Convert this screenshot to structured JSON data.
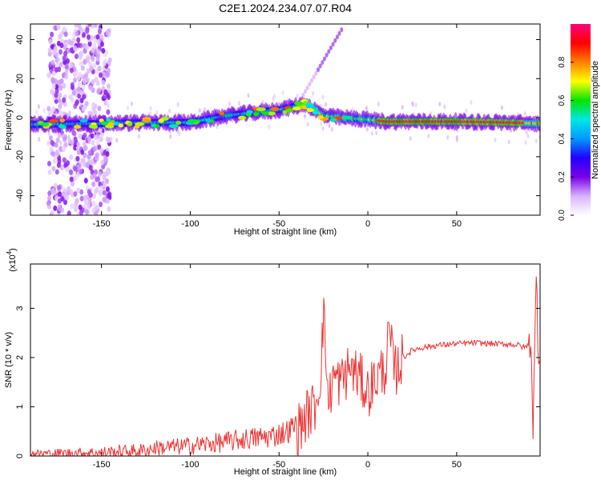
{
  "title": "C2E1.2024.234.07.07.R04",
  "chart_data": [
    {
      "type": "heatmap",
      "xlabel": "Height of straight line (km)",
      "ylabel": "Frequency (Hz)",
      "xlim": [
        -190,
        97
      ],
      "ylim": [
        -50,
        48
      ],
      "x_ticks": [
        -150,
        -100,
        -50,
        0,
        50
      ],
      "y_ticks": [
        40,
        20,
        0,
        -20,
        -40
      ],
      "colorbar": {
        "label": "Normalized spectral amplitude",
        "range": [
          0,
          1
        ],
        "ticks": [
          "0.0",
          "0.2",
          "0.4",
          "0.6",
          "0.8"
        ],
        "colors": [
          "#ffffff",
          "#d9b3ff",
          "#7a00e6",
          "#2200ff",
          "#0099ff",
          "#00e6e6",
          "#00e600",
          "#ffff00",
          "#ff8000",
          "#ff0000",
          "#ff0080"
        ]
      },
      "ridge": {
        "description": "main echo frequency track vs height",
        "points": [
          {
            "x": -190,
            "y": -3.5
          },
          {
            "x": -150,
            "y": -3
          },
          {
            "x": -120,
            "y": -2.5
          },
          {
            "x": -100,
            "y": -2.5
          },
          {
            "x": -80,
            "y": 1
          },
          {
            "x": -60,
            "y": 3
          },
          {
            "x": -50,
            "y": 4
          },
          {
            "x": -35,
            "y": 7
          },
          {
            "x": -25,
            "y": 1
          },
          {
            "x": -15,
            "y": 0
          },
          {
            "x": 0,
            "y": -1
          },
          {
            "x": 10,
            "y": -2
          },
          {
            "x": 50,
            "y": -2
          },
          {
            "x": 80,
            "y": -2.5
          },
          {
            "x": 95,
            "y": -3
          }
        ]
      },
      "noise_region_x": [
        -180,
        -145
      ]
    },
    {
      "type": "line",
      "xlabel": "Height of straight line (km)",
      "ylabel": "SNR (10 * v/v)",
      "scale_label": "(x10^4)",
      "xlim": [
        -190,
        97
      ],
      "ylim": [
        0,
        3.9
      ],
      "x_ticks": [
        -150,
        -100,
        -50,
        0,
        50
      ],
      "y_ticks": [
        0,
        1,
        2,
        3
      ],
      "color": "#ee3333",
      "x": [
        -190,
        -150,
        -125,
        -120,
        -105,
        -95,
        -80,
        -70,
        -55,
        -45,
        -38,
        -35,
        -30,
        -27,
        -25,
        -22,
        -20,
        -15,
        -10,
        -5,
        0,
        5,
        10,
        12,
        15,
        20,
        25,
        30,
        40,
        50,
        60,
        70,
        80,
        85,
        88,
        92,
        93,
        95,
        96,
        97
      ],
      "y": [
        0.02,
        0.02,
        0.05,
        0.1,
        0.12,
        0.15,
        0.2,
        0.25,
        0.3,
        0.4,
        0.6,
        0.8,
        1.0,
        1.5,
        2.9,
        1.0,
        1.6,
        1.5,
        1.8,
        1.6,
        1.3,
        1.6,
        1.8,
        2.5,
        1.7,
        2.0,
        2.15,
        2.2,
        2.25,
        2.28,
        2.3,
        2.28,
        2.27,
        2.25,
        2.2,
        2.3,
        0.5,
        3.8,
        2.0,
        2.0
      ]
    }
  ]
}
